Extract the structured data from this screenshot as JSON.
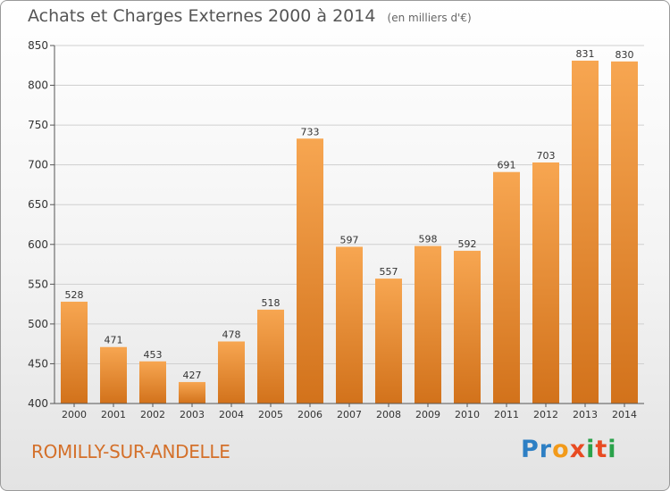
{
  "title": "Achats et Charges Externes 2000 à 2014",
  "title_unit": "(en milliers d'€)",
  "commune": "ROMILLY-SUR-ANDELLE",
  "logo": {
    "letters": [
      "P",
      "r",
      "o",
      "x",
      "i",
      "t",
      "i"
    ],
    "colors": [
      "#2d7fc4",
      "#2d7fc4",
      "#f29a1a",
      "#e84b22",
      "#2aa24a",
      "#e84b22",
      "#2aa24a"
    ]
  },
  "colors": {
    "bar_top": "#f7a651",
    "bar_bottom": "#d2721b",
    "axis": "#555555",
    "grid": "#cfcfcf",
    "label": "#333333"
  },
  "chart_data": {
    "type": "bar",
    "title": "Achats et Charges Externes 2000 à 2014",
    "xlabel": "",
    "ylabel": "",
    "categories": [
      "2000",
      "2001",
      "2002",
      "2003",
      "2004",
      "2005",
      "2006",
      "2007",
      "2008",
      "2009",
      "2010",
      "2011",
      "2012",
      "2013",
      "2014"
    ],
    "values": [
      528,
      471,
      453,
      427,
      478,
      518,
      733,
      597,
      557,
      598,
      592,
      691,
      703,
      831,
      830
    ],
    "ylim": [
      400,
      850
    ],
    "yticks": [
      400,
      450,
      500,
      550,
      600,
      650,
      700,
      750,
      800,
      850
    ],
    "grid": true
  }
}
